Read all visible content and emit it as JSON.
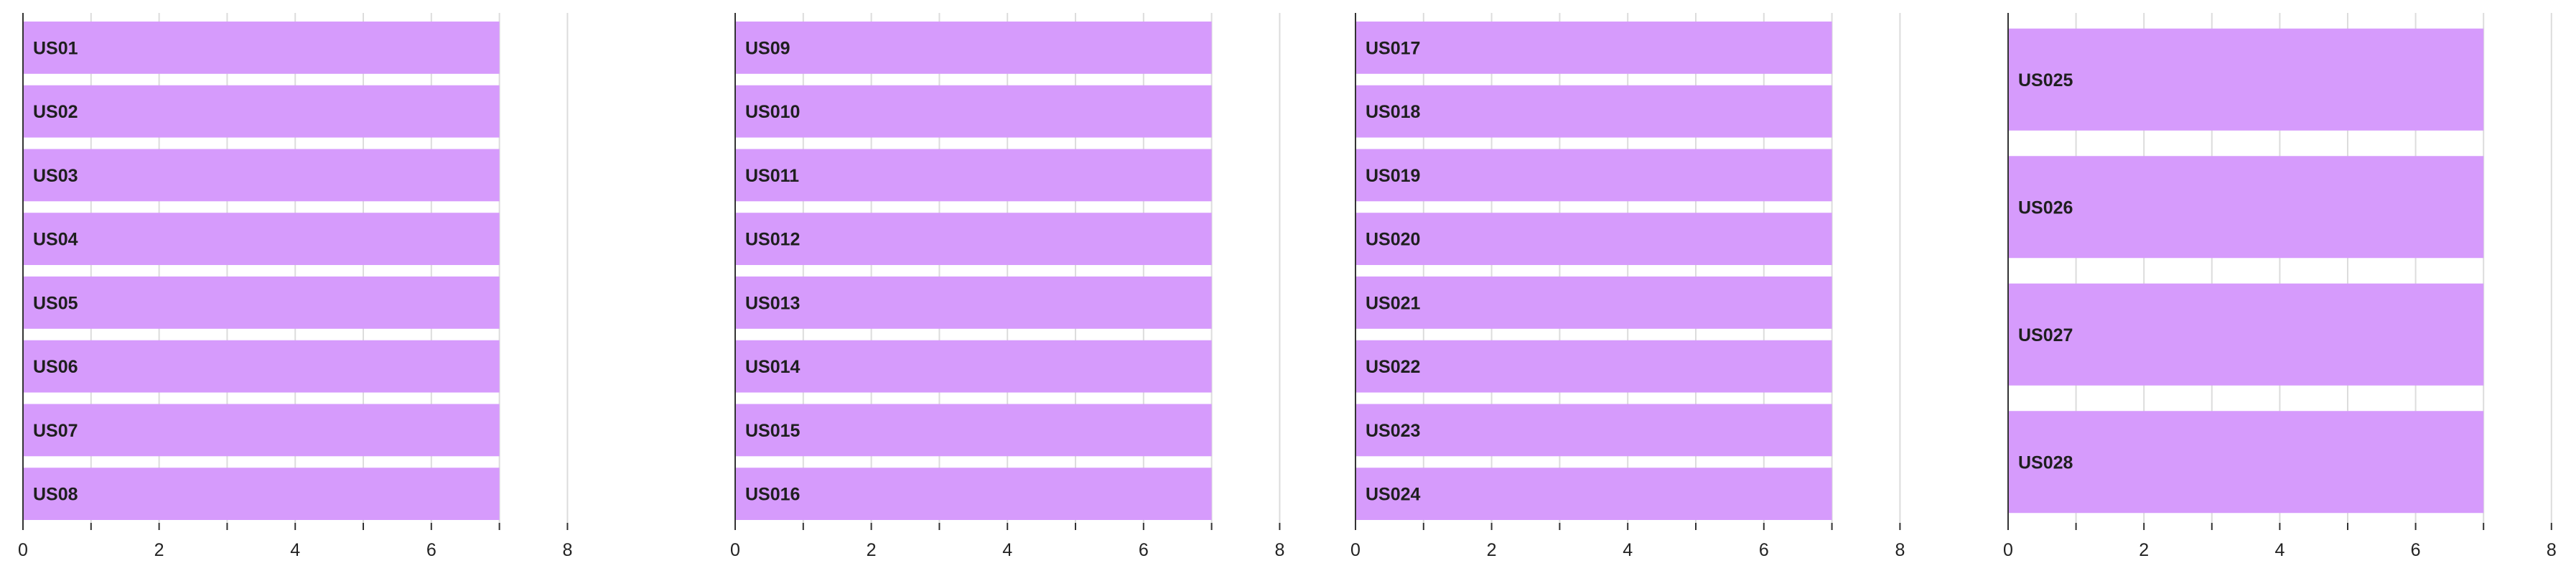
{
  "chart_data": [
    {
      "type": "bar",
      "orientation": "horizontal",
      "categories": [
        "US01",
        "US02",
        "US03",
        "US04",
        "US05",
        "US06",
        "US07",
        "US08"
      ],
      "values": [
        7,
        7,
        7,
        7,
        7,
        7,
        7,
        7
      ],
      "xlim": [
        0,
        8
      ],
      "xticks": [
        0,
        2,
        4,
        6,
        8
      ],
      "grid": true,
      "bar_color": "#d69bfc"
    },
    {
      "type": "bar",
      "orientation": "horizontal",
      "categories": [
        "US09",
        "US010",
        "US011",
        "US012",
        "US013",
        "US014",
        "US015",
        "US016"
      ],
      "values": [
        7,
        7,
        7,
        7,
        7,
        7,
        7,
        7
      ],
      "xlim": [
        0,
        8
      ],
      "xticks": [
        0,
        2,
        4,
        6,
        8
      ],
      "grid": true,
      "bar_color": "#d69bfc"
    },
    {
      "type": "bar",
      "orientation": "horizontal",
      "categories": [
        "US017",
        "US018",
        "US019",
        "US020",
        "US021",
        "US022",
        "US023",
        "US024"
      ],
      "values": [
        7,
        7,
        7,
        7,
        7,
        7,
        7,
        7
      ],
      "xlim": [
        0,
        8
      ],
      "xticks": [
        0,
        2,
        4,
        6,
        8
      ],
      "grid": true,
      "bar_color": "#d69bfc"
    },
    {
      "type": "bar",
      "orientation": "horizontal",
      "categories": [
        "US025",
        "US026",
        "US027",
        "US028"
      ],
      "values": [
        7,
        7,
        7,
        7
      ],
      "xlim": [
        0,
        8
      ],
      "xticks": [
        0,
        2,
        4,
        6,
        8
      ],
      "grid": true,
      "bar_color": "#d69bfc"
    }
  ]
}
